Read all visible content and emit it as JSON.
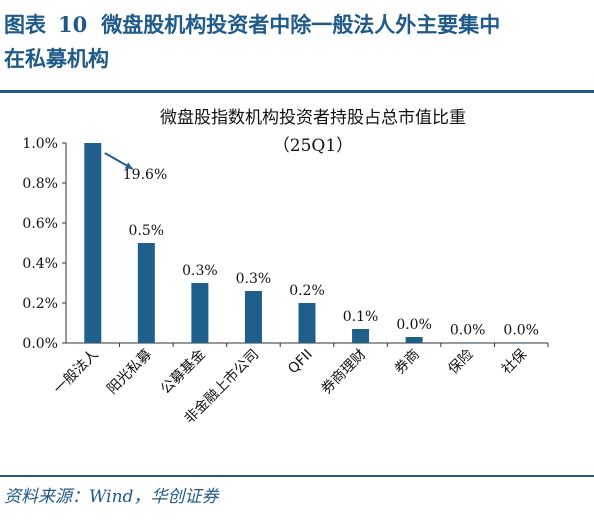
{
  "header": {
    "fig_label": "图表",
    "fig_number": "10",
    "title_line1": "微盘股机构投资者中除一般法人外主要集中",
    "title_line2": "在私募机构"
  },
  "source": "资料来源：Wind，华创证券",
  "colors": {
    "bar": "#1f5f8b",
    "accent": "#1f5a88",
    "text": "#111111"
  },
  "chart_data": {
    "type": "bar",
    "title": "微盘股指数机构投资者持股占总市值比重",
    "subtitle": "（25Q1）",
    "categories": [
      "一般法人",
      "阳光私募",
      "公募基金",
      "非金融上市公司",
      "QFII",
      "券商理财",
      "券商",
      "保险",
      "社保"
    ],
    "values": [
      19.6,
      0.5,
      0.3,
      0.26,
      0.2,
      0.07,
      0.03,
      0.0,
      0.0
    ],
    "data_labels": [
      "19.6%",
      "0.5%",
      "0.3%",
      "0.3%",
      "0.2%",
      "0.1%",
      "0.0%",
      "0.0%",
      "0.0%"
    ],
    "y_ticks": [
      "0.0%",
      "0.2%",
      "0.4%",
      "0.6%",
      "0.8%",
      "1.0%"
    ],
    "ylim": [
      0,
      1.0
    ],
    "clipped_first_bar": true,
    "xlabel": "",
    "ylabel": ""
  }
}
